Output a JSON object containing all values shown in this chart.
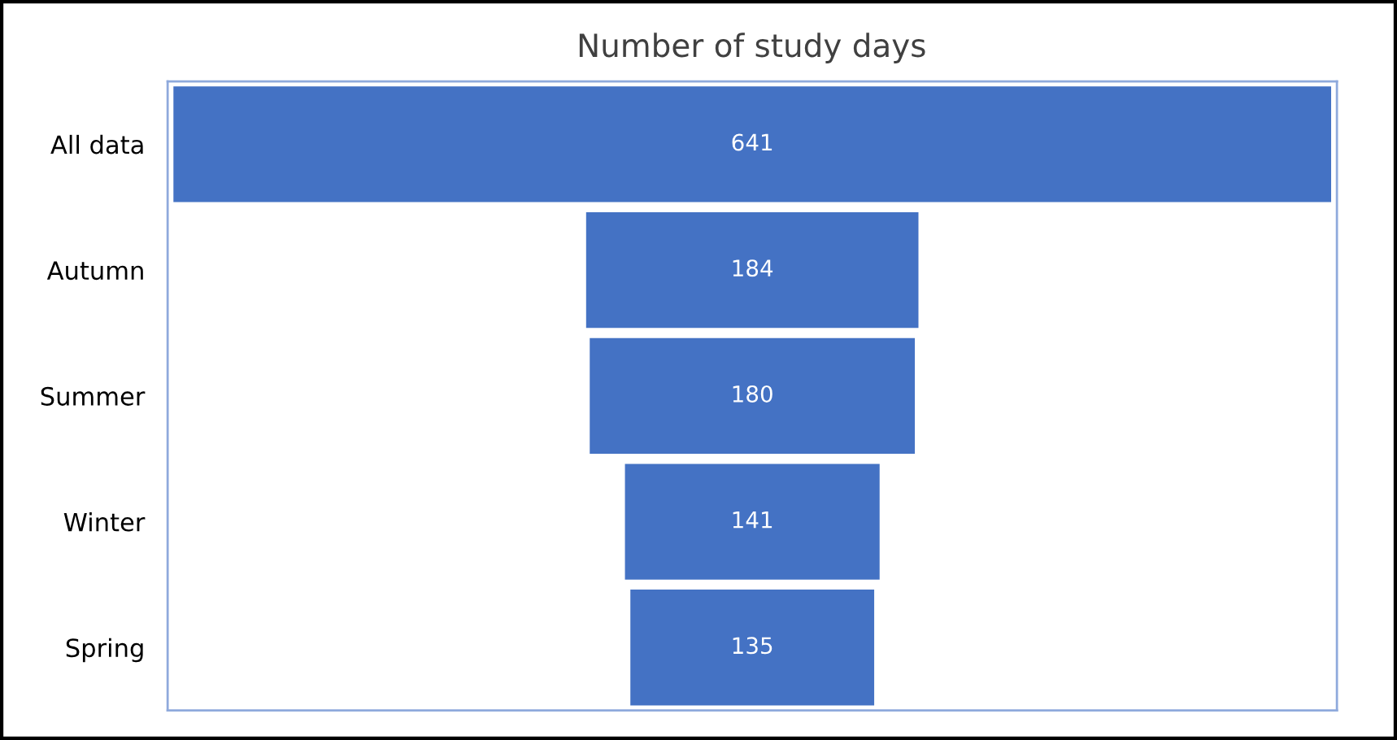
{
  "chart_data": {
    "type": "other",
    "title": "Number of study days",
    "categories": [
      "All data",
      "Autumn",
      "Summer",
      "Winter",
      "Spring"
    ],
    "values": [
      641,
      184,
      180,
      141,
      135
    ],
    "color": "#4472c4",
    "data_labels": true
  }
}
